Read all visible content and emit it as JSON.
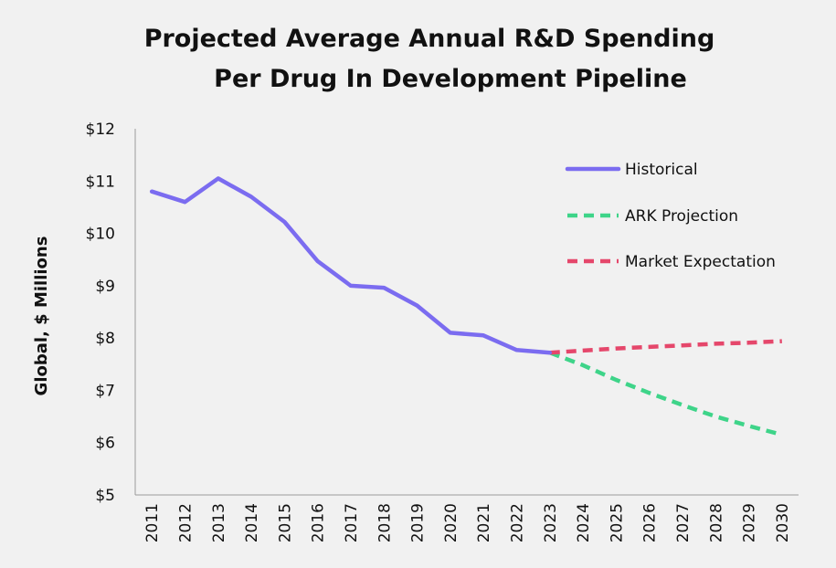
{
  "chart_data": {
    "type": "line",
    "title": "Projected Average Annual R&D Spending Per Drug In Development Pipeline",
    "title_lines": [
      "Projected Average Annual R&D Spending",
      "Per Drug In Development Pipeline"
    ],
    "xlabel": "",
    "ylabel": "Global, $ Millions",
    "ylim": [
      5,
      12
    ],
    "yticks": [
      5,
      6,
      7,
      8,
      9,
      10,
      11,
      12
    ],
    "ytick_labels": [
      "$5",
      "$6",
      "$7",
      "$8",
      "$9",
      "$10",
      "$11",
      "$12"
    ],
    "categories": [
      "2011",
      "2012",
      "2013",
      "2014",
      "2015",
      "2016",
      "2017",
      "2018",
      "2019",
      "2020",
      "2021",
      "2022",
      "2023",
      "2024",
      "2025",
      "2026",
      "2027",
      "2028",
      "2029",
      "2030"
    ],
    "grid": false,
    "legend_position": "top-right",
    "series": [
      {
        "name": "Historical",
        "color": "#7b6cf0",
        "style": "solid",
        "x": [
          "2011",
          "2012",
          "2013",
          "2014",
          "2015",
          "2016",
          "2017",
          "2018",
          "2019",
          "2020",
          "2021",
          "2022",
          "2023"
        ],
        "values": [
          10.8,
          10.6,
          11.05,
          10.7,
          10.22,
          9.47,
          9.0,
          8.96,
          8.62,
          8.1,
          8.05,
          7.77,
          7.72
        ]
      },
      {
        "name": "ARK Projection",
        "color": "#3ed489",
        "style": "dashed",
        "x": [
          "2023",
          "2024",
          "2025",
          "2026",
          "2027",
          "2028",
          "2029",
          "2030"
        ],
        "values": [
          7.72,
          7.48,
          7.2,
          6.95,
          6.72,
          6.5,
          6.32,
          6.15
        ]
      },
      {
        "name": "Market Expectation",
        "color": "#e5476b",
        "style": "dashed",
        "x": [
          "2023",
          "2024",
          "2025",
          "2026",
          "2027",
          "2028",
          "2029",
          "2030"
        ],
        "values": [
          7.72,
          7.76,
          7.8,
          7.83,
          7.86,
          7.89,
          7.91,
          7.94
        ]
      }
    ]
  }
}
